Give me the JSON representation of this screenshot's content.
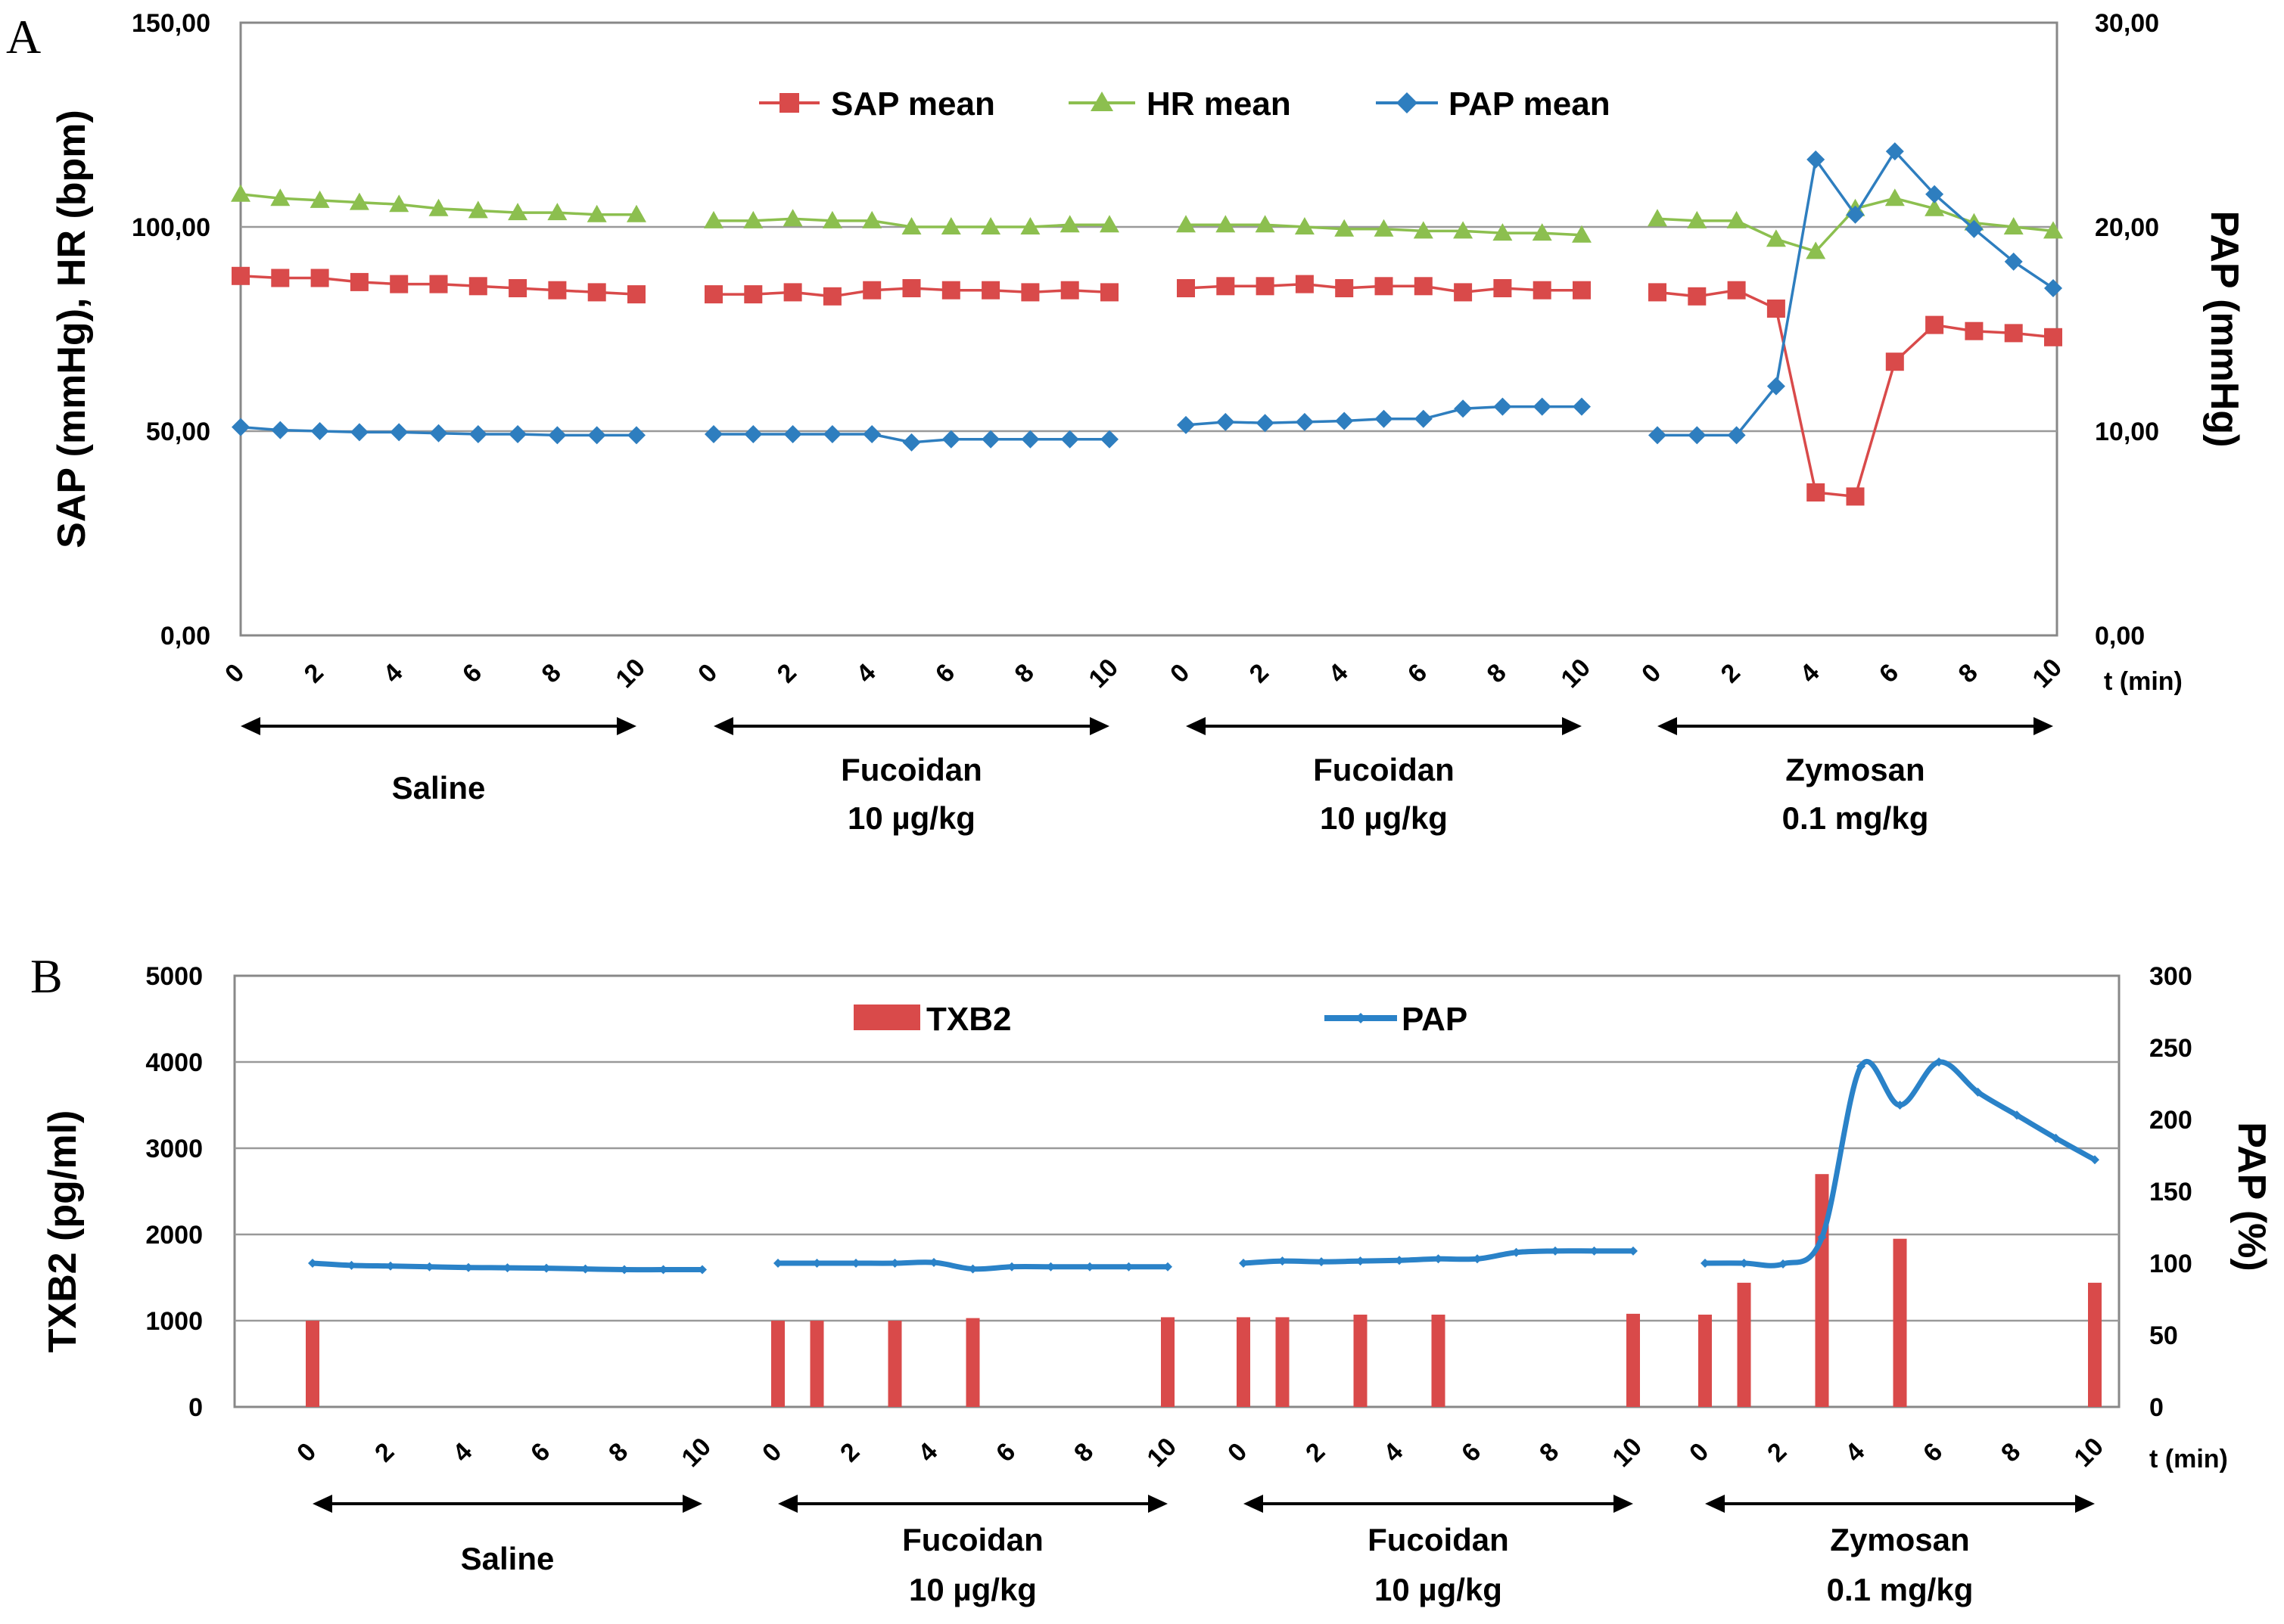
{
  "chart_data": [
    {
      "panel": "A",
      "type": "line",
      "left_ylabel": "SAP (mmHg), HR (bpm)",
      "right_ylabel": "PAP  (mmHg)",
      "xlabel": "t (min)",
      "left_ylim": [
        0,
        150
      ],
      "right_ylim": [
        0,
        30
      ],
      "left_ticks": [
        "0,00",
        "50,00",
        "100,00",
        "150,00"
      ],
      "right_ticks": [
        "0,00",
        "10,00",
        "20,00",
        "30,00"
      ],
      "x_tick_labels": [
        "0",
        "2",
        "4",
        "6",
        "8",
        "10"
      ],
      "grid": true,
      "legend_position": "top-center",
      "groups": [
        {
          "line1": "Saline",
          "line2": ""
        },
        {
          "line1": "Fucoidan",
          "line2": "10 µg/kg"
        },
        {
          "line1": "Fucoidan",
          "line2": "10 µg/kg"
        },
        {
          "line1": "Zymosan",
          "line2": "0.1 mg/kg"
        }
      ],
      "x": [
        0,
        1,
        2,
        3,
        4,
        5,
        6,
        7,
        8,
        9,
        10
      ],
      "series": [
        {
          "name": "SAP mean",
          "axis": "left",
          "marker": "square",
          "color": "#d94a4a",
          "values": [
            [
              88,
              87.5,
              87.5,
              86.5,
              86,
              86,
              85.5,
              85,
              84.5,
              84,
              83.5
            ],
            [
              83.5,
              83.5,
              84,
              83,
              84.5,
              85,
              84.5,
              84.5,
              84,
              84.5,
              84
            ],
            [
              85,
              85.5,
              85.5,
              86,
              85,
              85.5,
              85.5,
              84,
              85,
              84.5,
              84.5
            ],
            [
              84,
              83,
              84.5,
              80,
              35,
              34,
              67,
              76,
              74.5,
              74,
              73
            ]
          ]
        },
        {
          "name": "HR mean",
          "axis": "left",
          "marker": "triangle",
          "color": "#8cbf4f",
          "values": [
            [
              108,
              107,
              106.5,
              106,
              105.5,
              104.5,
              104,
              103.5,
              103.5,
              103,
              103
            ],
            [
              101.5,
              101.5,
              102,
              101.5,
              101.5,
              100,
              100,
              100,
              100,
              100.5,
              100.5
            ],
            [
              100.5,
              100.5,
              100.5,
              100,
              99.5,
              99.5,
              99,
              99,
              98.5,
              98.5,
              98
            ],
            [
              102,
              101.5,
              101.5,
              97,
              94,
              104.5,
              107,
              104.5,
              101,
              100,
              99
            ]
          ]
        },
        {
          "name": "PAP mean",
          "axis": "right",
          "marker": "diamond",
          "color": "#2e7ebf",
          "values": [
            [
              10.2,
              10.05,
              10,
              9.95,
              9.95,
              9.9,
              9.85,
              9.85,
              9.8,
              9.8,
              9.8
            ],
            [
              9.85,
              9.85,
              9.85,
              9.85,
              9.85,
              9.45,
              9.6,
              9.6,
              9.6,
              9.6,
              9.6
            ],
            [
              10.3,
              10.45,
              10.4,
              10.45,
              10.5,
              10.6,
              10.6,
              11.1,
              11.2,
              11.2,
              11.2
            ],
            [
              9.8,
              9.8,
              9.8,
              12.2,
              23.3,
              20.6,
              23.7,
              21.6,
              19.9,
              18.3,
              17
            ]
          ]
        }
      ]
    },
    {
      "panel": "B",
      "type": "bar",
      "left_ylabel": "TXB2 (pg/ml)",
      "right_ylabel": "PAP  (%)",
      "xlabel": "t (min)",
      "left_ylim": [
        0,
        5000
      ],
      "right_ylim": [
        0,
        300
      ],
      "left_ticks": [
        "0",
        "1000",
        "2000",
        "3000",
        "4000",
        "5000"
      ],
      "right_ticks": [
        "0",
        "50",
        "100",
        "150",
        "200",
        "250",
        "300"
      ],
      "x_tick_labels": [
        "0",
        "2",
        "4",
        "6",
        "8",
        "10"
      ],
      "grid": true,
      "legend_position": "top-center",
      "groups": [
        {
          "line1": "Saline",
          "line2": ""
        },
        {
          "line1": "Fucoidan",
          "line2": "10 µg/kg"
        },
        {
          "line1": "Fucoidan",
          "line2": "10 µg/kg"
        },
        {
          "line1": "Zymosan",
          "line2": "0.1 mg/kg"
        }
      ],
      "bars": {
        "name": "TXB2",
        "axis": "left",
        "color": "#d94a4a",
        "points": [
          [
            {
              "t": 0,
              "v": 1000
            }
          ],
          [
            {
              "t": 0,
              "v": 1000
            },
            {
              "t": 1,
              "v": 1000
            },
            {
              "t": 3,
              "v": 1000
            },
            {
              "t": 5,
              "v": 1030
            },
            {
              "t": 10,
              "v": 1040
            }
          ],
          [
            {
              "t": 0,
              "v": 1040
            },
            {
              "t": 1,
              "v": 1040
            },
            {
              "t": 3,
              "v": 1070
            },
            {
              "t": 5,
              "v": 1070
            },
            {
              "t": 10,
              "v": 1080
            }
          ],
          [
            {
              "t": 0,
              "v": 1070
            },
            {
              "t": 1,
              "v": 1440
            },
            {
              "t": 3,
              "v": 2700
            },
            {
              "t": 5,
              "v": 1950
            },
            {
              "t": 10,
              "v": 1440
            }
          ]
        ]
      },
      "line": {
        "name": "PAP",
        "axis": "right",
        "color": "#2a82c8",
        "values": [
          [
            100,
            98.5,
            98,
            97.5,
            97,
            96.8,
            96.5,
            96,
            95.5,
            95.5,
            95.5
          ],
          [
            100,
            100,
            100,
            100,
            100.5,
            96,
            97.5,
            97.5,
            97.5,
            97.5,
            97.5
          ],
          [
            100,
            101.5,
            101,
            101.5,
            102,
            103,
            103,
            107.5,
            108.5,
            108.5,
            108.5
          ],
          [
            100,
            100,
            99.5,
            118,
            237,
            210,
            240,
            219,
            203,
            187,
            172
          ]
        ]
      }
    }
  ],
  "panels": {
    "a": {
      "letter": "A"
    },
    "b": {
      "letter": "B"
    }
  }
}
